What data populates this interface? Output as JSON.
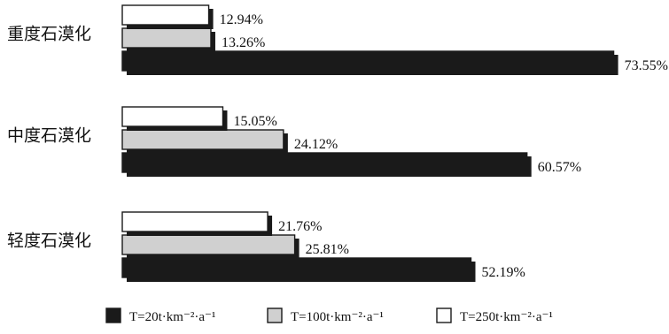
{
  "chart_data": {
    "type": "bar",
    "orientation": "horizontal",
    "categories": [
      "重度石漠化",
      "中度石漠化",
      "轻度石漠化"
    ],
    "series": [
      {
        "name": "T=20t·km⁻²·a⁻¹",
        "color": "#1a1a1a",
        "values": [
          73.55,
          60.57,
          52.19
        ]
      },
      {
        "name": "T=100t·km⁻²·a⁻¹",
        "color": "#d0d0d0",
        "values": [
          13.26,
          24.12,
          25.81
        ]
      },
      {
        "name": "T=250t·km⁻²·a⁻¹",
        "color": "#ffffff",
        "values": [
          12.94,
          15.05,
          21.76
        ]
      }
    ],
    "value_suffix": "%",
    "legend_position": "bottom"
  }
}
